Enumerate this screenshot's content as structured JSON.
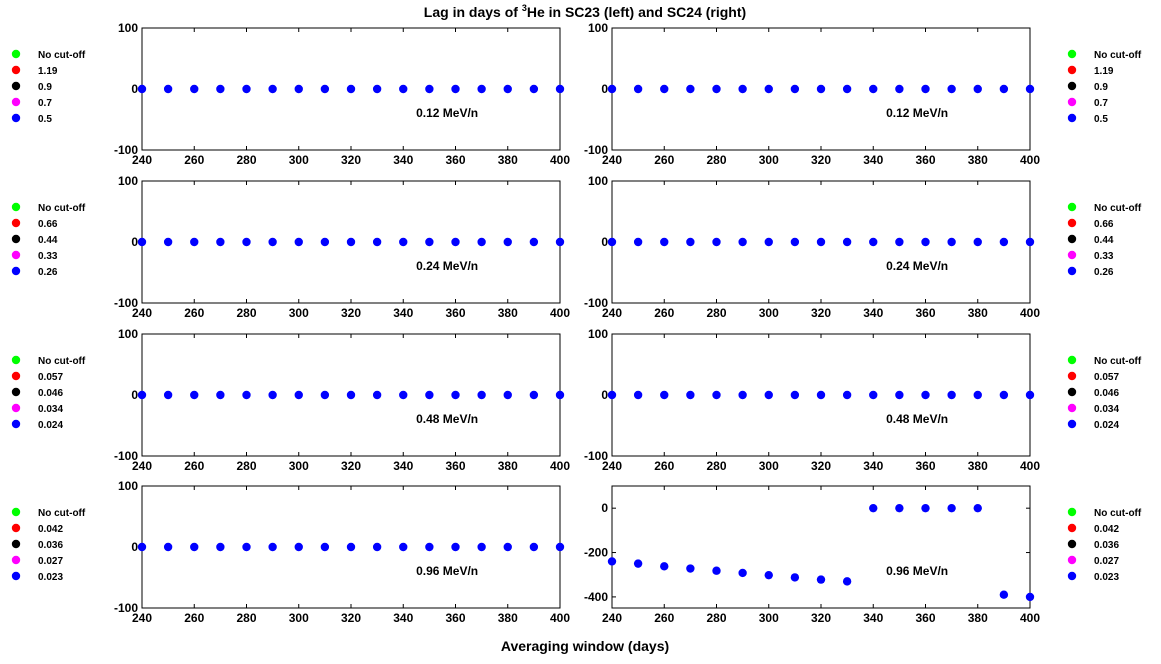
{
  "figure": {
    "title_before": "Lag in days of ",
    "title_sup": "3",
    "title_after": "He in SC23 (left) and SC24 (right)",
    "xlabel": "Averaging window (days)"
  },
  "colors": {
    "No cut-off": "#00ff00",
    "c1": "#ff0000",
    "c2": "#000000",
    "c3": "#ff00ff",
    "c4": "#0000ff"
  },
  "chart_data": [
    {
      "type": "scatter",
      "panel": "row1-left",
      "annotation": "0.12 MeV/n",
      "xlim": [
        240,
        400
      ],
      "ylim": [
        -100,
        100
      ],
      "xticks": [
        "240",
        "260",
        "280",
        "300",
        "320",
        "340",
        "360",
        "380",
        "400"
      ],
      "yticks": [
        "-100",
        "0",
        "100"
      ],
      "x": [
        240,
        250,
        260,
        270,
        280,
        290,
        300,
        310,
        320,
        330,
        340,
        350,
        360,
        370,
        380,
        390,
        400
      ],
      "legend": [
        "No cut-off",
        "1.19",
        "0.9",
        "0.7",
        "0.5"
      ],
      "series": [
        {
          "name": "0.5",
          "color": "#0000ff",
          "values": [
            0,
            0,
            0,
            0,
            0,
            0,
            0,
            0,
            0,
            0,
            0,
            0,
            0,
            0,
            0,
            0,
            0
          ]
        }
      ]
    },
    {
      "type": "scatter",
      "panel": "row1-right",
      "annotation": "0.12 MeV/n",
      "xlim": [
        240,
        400
      ],
      "ylim": [
        -100,
        100
      ],
      "xticks": [
        "240",
        "260",
        "280",
        "300",
        "320",
        "340",
        "360",
        "380",
        "400"
      ],
      "yticks": [
        "-100",
        "0",
        "100"
      ],
      "x": [
        240,
        250,
        260,
        270,
        280,
        290,
        300,
        310,
        320,
        330,
        340,
        350,
        360,
        370,
        380,
        390,
        400
      ],
      "legend": [
        "No cut-off",
        "1.19",
        "0.9",
        "0.7",
        "0.5"
      ],
      "series": [
        {
          "name": "0.5",
          "color": "#0000ff",
          "values": [
            0,
            0,
            0,
            0,
            0,
            0,
            0,
            0,
            0,
            0,
            0,
            0,
            0,
            0,
            0,
            0,
            0
          ]
        }
      ]
    },
    {
      "type": "scatter",
      "panel": "row2-left",
      "annotation": "0.24 MeV/n",
      "xlim": [
        240,
        400
      ],
      "ylim": [
        -100,
        100
      ],
      "xticks": [
        "240",
        "260",
        "280",
        "300",
        "320",
        "340",
        "360",
        "380",
        "400"
      ],
      "yticks": [
        "-100",
        "0",
        "100"
      ],
      "x": [
        240,
        250,
        260,
        270,
        280,
        290,
        300,
        310,
        320,
        330,
        340,
        350,
        360,
        370,
        380,
        390,
        400
      ],
      "legend": [
        "No cut-off",
        "0.66",
        "0.44",
        "0.33",
        "0.26"
      ],
      "series": [
        {
          "name": "0.26",
          "color": "#0000ff",
          "values": [
            0,
            0,
            0,
            0,
            0,
            0,
            0,
            0,
            0,
            0,
            0,
            0,
            0,
            0,
            0,
            0,
            0
          ]
        }
      ]
    },
    {
      "type": "scatter",
      "panel": "row2-right",
      "annotation": "0.24 MeV/n",
      "xlim": [
        240,
        400
      ],
      "ylim": [
        -100,
        100
      ],
      "xticks": [
        "240",
        "260",
        "280",
        "300",
        "320",
        "340",
        "360",
        "380",
        "400"
      ],
      "yticks": [
        "-100",
        "0",
        "100"
      ],
      "x": [
        240,
        250,
        260,
        270,
        280,
        290,
        300,
        310,
        320,
        330,
        340,
        350,
        360,
        370,
        380,
        390,
        400
      ],
      "legend": [
        "No cut-off",
        "0.66",
        "0.44",
        "0.33",
        "0.26"
      ],
      "series": [
        {
          "name": "0.26",
          "color": "#0000ff",
          "values": [
            0,
            0,
            0,
            0,
            0,
            0,
            0,
            0,
            0,
            0,
            0,
            0,
            0,
            0,
            0,
            0,
            0
          ]
        }
      ]
    },
    {
      "type": "scatter",
      "panel": "row3-left",
      "annotation": "0.48 MeV/n",
      "xlim": [
        240,
        400
      ],
      "ylim": [
        -100,
        100
      ],
      "xticks": [
        "240",
        "260",
        "280",
        "300",
        "320",
        "340",
        "360",
        "380",
        "400"
      ],
      "yticks": [
        "-100",
        "0",
        "100"
      ],
      "x": [
        240,
        250,
        260,
        270,
        280,
        290,
        300,
        310,
        320,
        330,
        340,
        350,
        360,
        370,
        380,
        390,
        400
      ],
      "legend": [
        "No cut-off",
        "0.057",
        "0.046",
        "0.034",
        "0.024"
      ],
      "series": [
        {
          "name": "0.024",
          "color": "#0000ff",
          "values": [
            0,
            0,
            0,
            0,
            0,
            0,
            0,
            0,
            0,
            0,
            0,
            0,
            0,
            0,
            0,
            0,
            0
          ]
        }
      ]
    },
    {
      "type": "scatter",
      "panel": "row3-right",
      "annotation": "0.48 MeV/n",
      "xlim": [
        240,
        400
      ],
      "ylim": [
        -100,
        100
      ],
      "xticks": [
        "240",
        "260",
        "280",
        "300",
        "320",
        "340",
        "360",
        "380",
        "400"
      ],
      "yticks": [
        "-100",
        "0",
        "100"
      ],
      "x": [
        240,
        250,
        260,
        270,
        280,
        290,
        300,
        310,
        320,
        330,
        340,
        350,
        360,
        370,
        380,
        390,
        400
      ],
      "legend": [
        "No cut-off",
        "0.057",
        "0.046",
        "0.034",
        "0.024"
      ],
      "series": [
        {
          "name": "0.024",
          "color": "#0000ff",
          "values": [
            0,
            0,
            0,
            0,
            0,
            0,
            0,
            0,
            0,
            0,
            0,
            0,
            0,
            0,
            0,
            0,
            0
          ]
        }
      ]
    },
    {
      "type": "scatter",
      "panel": "row4-left",
      "annotation": "0.96 MeV/n",
      "xlim": [
        240,
        400
      ],
      "ylim": [
        -100,
        100
      ],
      "xticks": [
        "240",
        "260",
        "280",
        "300",
        "320",
        "340",
        "360",
        "380",
        "400"
      ],
      "yticks": [
        "-100",
        "0",
        "100"
      ],
      "x": [
        240,
        250,
        260,
        270,
        280,
        290,
        300,
        310,
        320,
        330,
        340,
        350,
        360,
        370,
        380,
        390,
        400
      ],
      "legend": [
        "No cut-off",
        "0.042",
        "0.036",
        "0.027",
        "0.023"
      ],
      "series": [
        {
          "name": "0.023",
          "color": "#0000ff",
          "values": [
            0,
            0,
            0,
            0,
            0,
            0,
            0,
            0,
            0,
            0,
            0,
            0,
            0,
            0,
            0,
            0,
            0
          ]
        }
      ]
    },
    {
      "type": "scatter",
      "panel": "row4-right",
      "annotation": "0.96 MeV/n",
      "xlim": [
        240,
        400
      ],
      "ylim": [
        -450,
        100
      ],
      "xticks": [
        "240",
        "260",
        "280",
        "300",
        "320",
        "340",
        "360",
        "380",
        "400"
      ],
      "yticks": [
        "-400",
        "-200",
        "0"
      ],
      "x": [
        240,
        250,
        260,
        270,
        280,
        290,
        300,
        310,
        320,
        330,
        340,
        350,
        360,
        370,
        380,
        390,
        400
      ],
      "legend": [
        "No cut-off",
        "0.042",
        "0.036",
        "0.027",
        "0.023"
      ],
      "series": [
        {
          "name": "0.023",
          "color": "#0000ff",
          "values": [
            -240,
            -250,
            -262,
            -272,
            -282,
            -292,
            -302,
            -312,
            -322,
            -330,
            0,
            0,
            0,
            0,
            0,
            -390,
            -400
          ]
        }
      ]
    }
  ]
}
